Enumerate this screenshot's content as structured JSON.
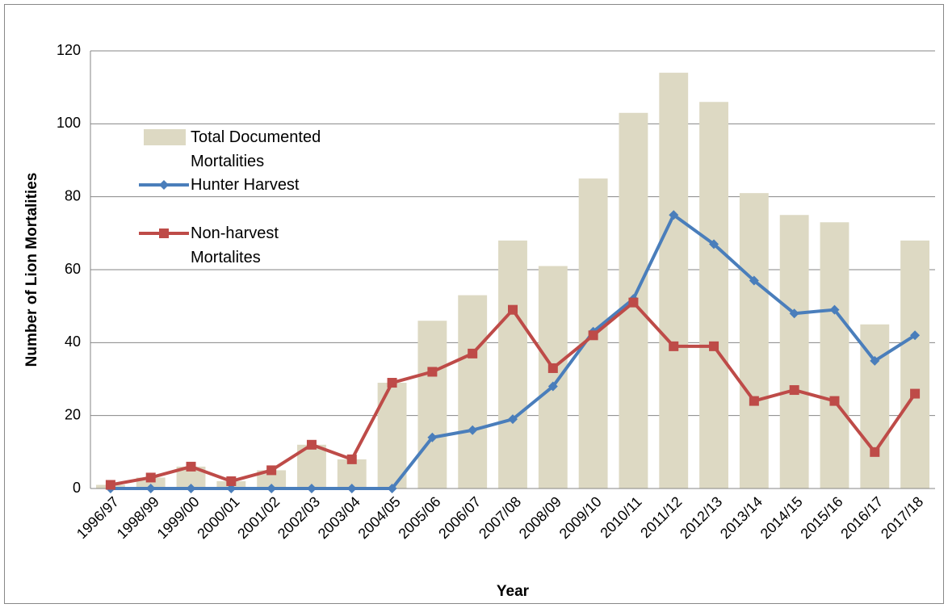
{
  "chart_data": {
    "type": "bar-line",
    "x_label": "Year",
    "y_label": "Number of Lion Mortalities",
    "categories": [
      "1996/97",
      "1998/99",
      "1999/00",
      "2000/01",
      "2001/02",
      "2002/03",
      "2003/04",
      "2004/05",
      "2005/06",
      "2006/07",
      "2007/08",
      "2008/09",
      "2009/10",
      "2010/11",
      "2011/12",
      "2012/13",
      "2013/14",
      "2014/15",
      "2015/16",
      "2016/17",
      "2017/18"
    ],
    "series": [
      {
        "name": "Total Documented Mortalities",
        "type": "bar",
        "color": "#ddd9c3",
        "values": [
          1,
          3,
          6,
          2,
          5,
          12,
          8,
          29,
          46,
          53,
          68,
          61,
          85,
          103,
          114,
          106,
          81,
          75,
          73,
          45,
          68
        ]
      },
      {
        "name": "Hunter Harvest",
        "type": "line",
        "marker": "diamond",
        "color": "#4a7ebb",
        "values": [
          0,
          0,
          0,
          0,
          0,
          0,
          0,
          0,
          14,
          16,
          19,
          28,
          43,
          52,
          75,
          67,
          57,
          48,
          49,
          35,
          42
        ]
      },
      {
        "name": "Non-harvest Mortalites",
        "type": "line",
        "marker": "square",
        "color": "#be4b48",
        "values": [
          1,
          3,
          6,
          2,
          5,
          12,
          8,
          29,
          32,
          37,
          49,
          33,
          42,
          51,
          39,
          39,
          24,
          27,
          24,
          10,
          26
        ]
      }
    ],
    "ylim": [
      0,
      120
    ],
    "yticks": [
      0,
      20,
      40,
      60,
      80,
      100,
      120
    ],
    "grid": true,
    "legend": "upper left"
  }
}
